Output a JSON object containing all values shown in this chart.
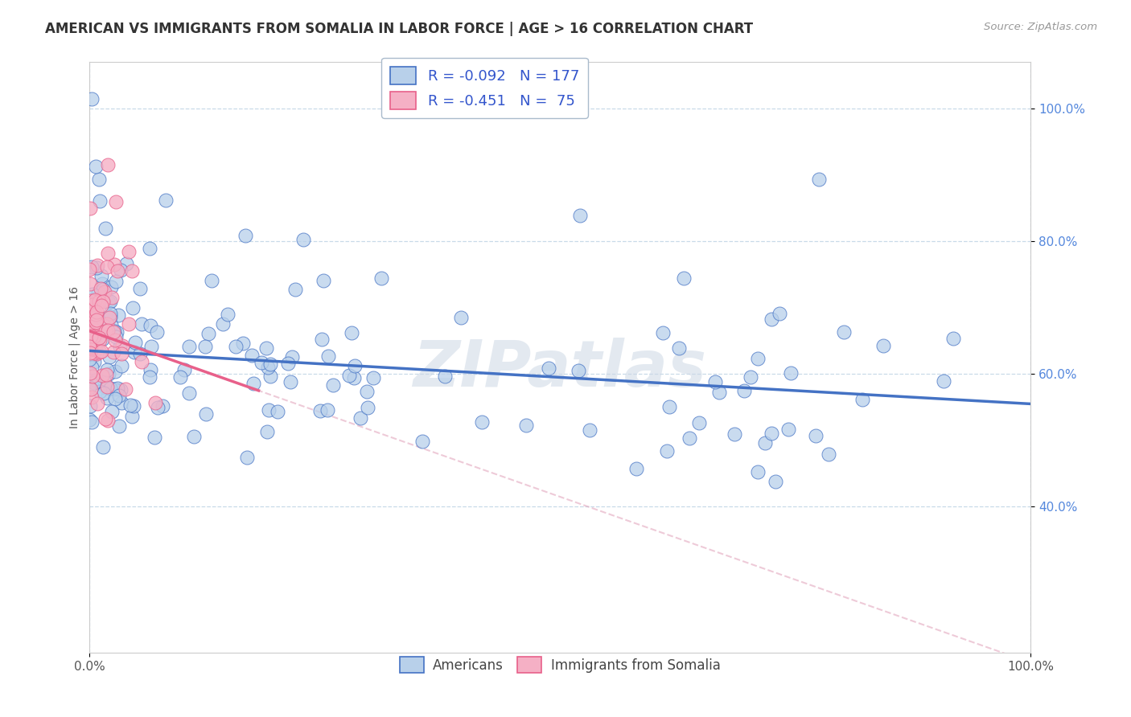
{
  "title": "AMERICAN VS IMMIGRANTS FROM SOMALIA IN LABOR FORCE | AGE > 16 CORRELATION CHART",
  "source": "Source: ZipAtlas.com",
  "ylabel": "In Labor Force | Age > 16",
  "xlim": [
    0.0,
    1.0
  ],
  "ylim": [
    0.18,
    1.07
  ],
  "x_ticks": [
    0.0,
    1.0
  ],
  "x_tick_labels": [
    "0.0%",
    "100.0%"
  ],
  "y_ticks": [
    0.4,
    0.6,
    0.8,
    1.0
  ],
  "y_tick_labels": [
    "40.0%",
    "60.0%",
    "80.0%",
    "100.0%"
  ],
  "americans_R": -0.092,
  "americans_N": 177,
  "somalia_R": -0.451,
  "somalia_N": 75,
  "american_color": "#b8d0ea",
  "somalia_color": "#f5b0c5",
  "american_line_color": "#4472c4",
  "somalia_line_color": "#e8608a",
  "background_color": "#ffffff",
  "watermark": "ZIPatlas",
  "legend_R_color": "#3355cc",
  "title_fontsize": 12,
  "axis_label_fontsize": 10,
  "tick_fontsize": 11
}
